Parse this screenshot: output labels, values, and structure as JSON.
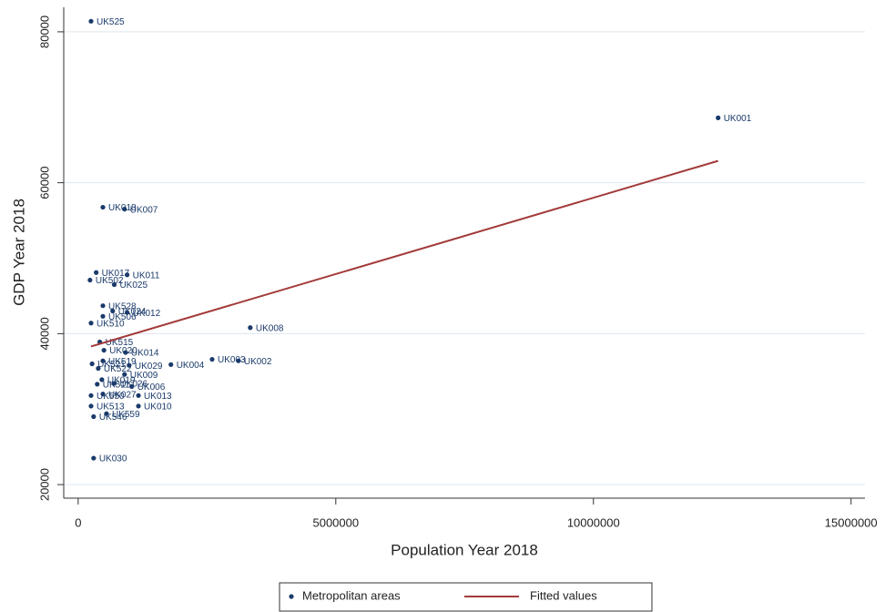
{
  "chart_data": {
    "type": "scatter",
    "xlabel": "Population Year 2018",
    "ylabel": "GDP Year 2018",
    "xlim": [
      -280000,
      15270000
    ],
    "ylim": [
      18200,
      83250
    ],
    "xticks": [
      0,
      5000000,
      10000000,
      15000000
    ],
    "yticks": [
      20000,
      40000,
      60000,
      80000
    ],
    "grid": true,
    "legend": "bottom",
    "series": [
      {
        "name": "Metropolitan areas",
        "color": "#1a3a6b",
        "labels": [
          "UK525",
          "UK001",
          "UK018",
          "UK007",
          "UK017",
          "UK011",
          "UK502",
          "UK025",
          "UK528",
          "UK012",
          "UK024",
          "UK506",
          "UK510",
          "UK008",
          "UK515",
          "UK020",
          "UK014",
          "UK003",
          "UK002",
          "UK004",
          "UK029",
          "UK519",
          "UK521",
          "UK522",
          "UK009",
          "UK019",
          "UK026",
          "UK511",
          "UK006",
          "UK027",
          "UK013",
          "UK550",
          "UK513",
          "UK010",
          "UK559",
          "UK546",
          "UK030"
        ],
        "x": [
          250000,
          12420000,
          480000,
          900000,
          350000,
          950000,
          230000,
          700000,
          480000,
          950000,
          670000,
          480000,
          250000,
          3340000,
          420000,
          500000,
          920000,
          2600000,
          3110000,
          1800000,
          990000,
          480000,
          270000,
          390000,
          900000,
          460000,
          700000,
          370000,
          1040000,
          480000,
          1170000,
          250000,
          250000,
          1170000,
          550000,
          300000,
          300000
        ],
        "values": [
          81400,
          68600,
          56750,
          56500,
          48100,
          47800,
          47100,
          46500,
          43700,
          42800,
          43000,
          42300,
          41400,
          40800,
          38900,
          37800,
          37500,
          36600,
          36400,
          35900,
          35800,
          36400,
          36000,
          35400,
          34600,
          33900,
          33400,
          33300,
          33000,
          32000,
          31800,
          31800,
          30400,
          30400,
          29400,
          29000,
          23500
        ]
      },
      {
        "name": "Fitted values",
        "type": "line",
        "color": "#a33a3a",
        "x": [
          250000,
          12420000
        ],
        "values": [
          38300,
          62900
        ]
      }
    ]
  }
}
